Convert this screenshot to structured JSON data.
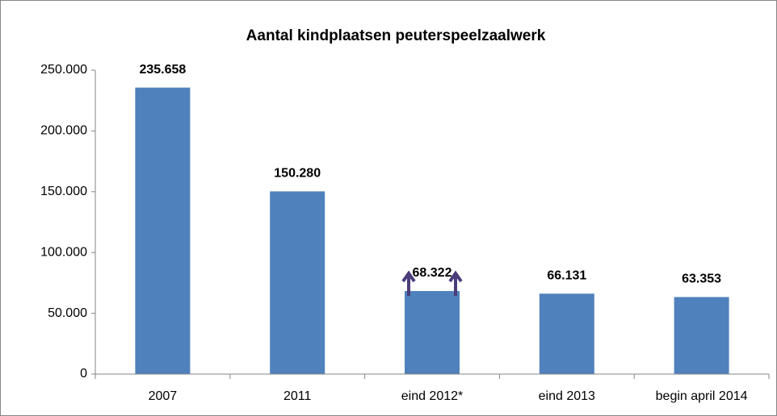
{
  "chart_data": {
    "type": "bar",
    "title": "Aantal kindplaatsen peuterspeelzaalwerk",
    "categories": [
      "2007",
      "2011",
      "eind 2012*",
      "eind 2013",
      "begin april 2014"
    ],
    "values": [
      235658,
      150280,
      68322,
      66131,
      63353
    ],
    "value_labels": [
      "235.658",
      "150.280",
      "68.322",
      "66.131",
      "63.353"
    ],
    "color": "#4f81bd",
    "ylim": [
      0,
      250000
    ],
    "yticks": [
      0,
      {
        "value": 50000,
        "label": "50.000"
      },
      {
        "value": 100000,
        "label": "100.000"
      },
      {
        "value": 150000,
        "label": "150.000"
      },
      {
        "value": 200000,
        "label": "200.000"
      },
      {
        "value": 250000,
        "label": "250.000"
      }
    ],
    "grid": false
  }
}
